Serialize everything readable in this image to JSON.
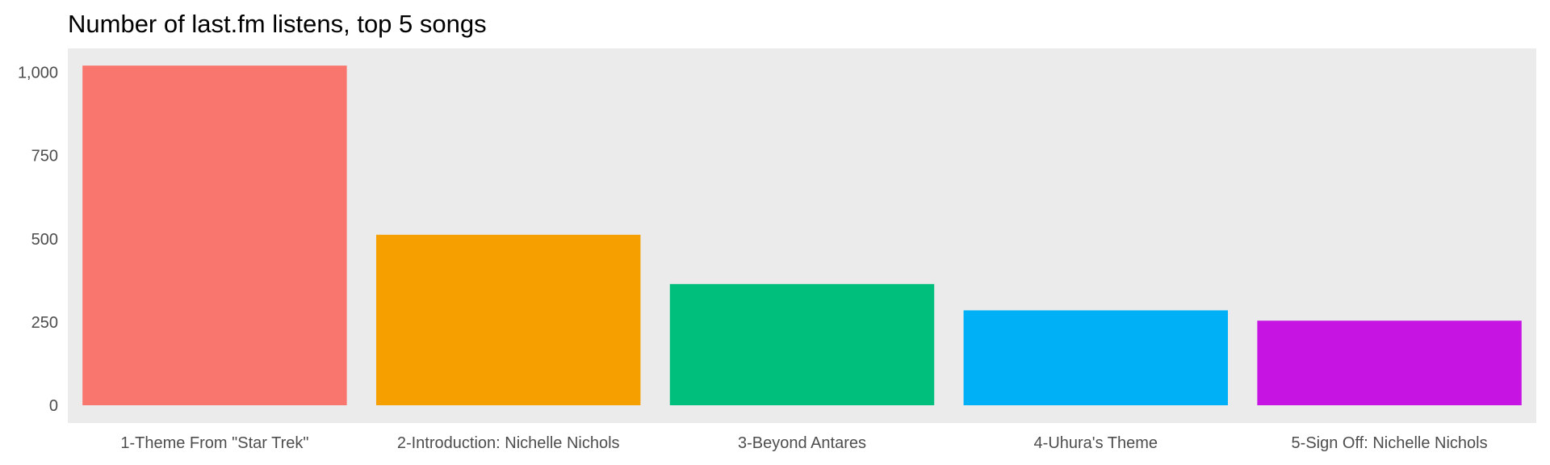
{
  "chart_data": {
    "type": "bar",
    "title": "Number of last.fm listens, top 5 songs",
    "xlabel": "",
    "ylabel": "",
    "categories": [
      "1-Theme From \"Star Trek\"",
      "2-Introduction: Nichelle Nichols",
      "3-Beyond Antares",
      "4-Uhura's Theme",
      "5-Sign Off: Nichelle Nichols"
    ],
    "values": [
      1020,
      512,
      364,
      285,
      254
    ],
    "ylim": [
      0,
      1080
    ],
    "yticks": [
      0,
      250,
      500,
      750,
      1000
    ],
    "ytick_labels": [
      "0",
      "250",
      "500",
      "750",
      "1,000"
    ],
    "colors": [
      "#F8766D",
      "#F59F00",
      "#00BF7D",
      "#00B0F6",
      "#C614E2"
    ],
    "panel_background": "#EBEBEB",
    "grid": false,
    "legend": "none"
  }
}
